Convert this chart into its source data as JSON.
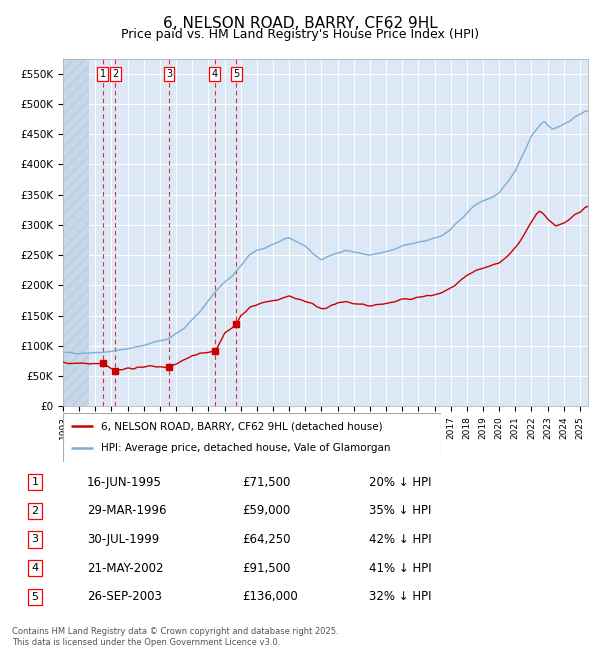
{
  "title": "6, NELSON ROAD, BARRY, CF62 9HL",
  "subtitle": "Price paid vs. HM Land Registry's House Price Index (HPI)",
  "title_fontsize": 11,
  "subtitle_fontsize": 9,
  "ylabel_ticks": [
    "£0",
    "£50K",
    "£100K",
    "£150K",
    "£200K",
    "£250K",
    "£300K",
    "£350K",
    "£400K",
    "£450K",
    "£500K",
    "£550K"
  ],
  "ytick_values": [
    0,
    50000,
    100000,
    150000,
    200000,
    250000,
    300000,
    350000,
    400000,
    450000,
    500000,
    550000
  ],
  "ylim": [
    0,
    575000
  ],
  "xlim_start": 1993.0,
  "xlim_end": 2025.5,
  "hpi_color": "#7bafd4",
  "price_color": "#cc0000",
  "bg_color": "#dce8f5",
  "grid_color": "#ffffff",
  "transactions": [
    {
      "id": 1,
      "year": 1995.45,
      "price": 71500
    },
    {
      "id": 2,
      "year": 1996.24,
      "price": 59000
    },
    {
      "id": 3,
      "year": 1999.58,
      "price": 64250
    },
    {
      "id": 4,
      "year": 2002.39,
      "price": 91500
    },
    {
      "id": 5,
      "year": 2003.74,
      "price": 136000
    }
  ],
  "legend_entries": [
    "6, NELSON ROAD, BARRY, CF62 9HL (detached house)",
    "HPI: Average price, detached house, Vale of Glamorgan"
  ],
  "footer_text": "Contains HM Land Registry data © Crown copyright and database right 2025.\nThis data is licensed under the Open Government Licence v3.0.",
  "table_rows": [
    [
      1,
      "16-JUN-1995",
      "£71,500",
      "20% ↓ HPI"
    ],
    [
      2,
      "29-MAR-1996",
      "£59,000",
      "35% ↓ HPI"
    ],
    [
      3,
      "30-JUL-1999",
      "£64,250",
      "42% ↓ HPI"
    ],
    [
      4,
      "21-MAY-2002",
      "£91,500",
      "41% ↓ HPI"
    ],
    [
      5,
      "26-SEP-2003",
      "£136,000",
      "32% ↓ HPI"
    ]
  ],
  "hpi_anchors": [
    [
      1993.0,
      88000
    ],
    [
      1994.0,
      88500
    ],
    [
      1995.0,
      89000
    ],
    [
      1995.5,
      90000
    ],
    [
      1996.5,
      93000
    ],
    [
      1997.5,
      97000
    ],
    [
      1998.5,
      105000
    ],
    [
      1999.5,
      112000
    ],
    [
      2000.5,
      128000
    ],
    [
      2001.5,
      158000
    ],
    [
      2002.5,
      192000
    ],
    [
      2003.0,
      205000
    ],
    [
      2003.5,
      215000
    ],
    [
      2004.0,
      232000
    ],
    [
      2004.5,
      248000
    ],
    [
      2005.0,
      258000
    ],
    [
      2005.5,
      262000
    ],
    [
      2006.0,
      268000
    ],
    [
      2006.5,
      272000
    ],
    [
      2007.0,
      278000
    ],
    [
      2007.5,
      272000
    ],
    [
      2008.0,
      265000
    ],
    [
      2008.5,
      252000
    ],
    [
      2009.0,
      242000
    ],
    [
      2009.5,
      248000
    ],
    [
      2010.0,
      255000
    ],
    [
      2010.5,
      258000
    ],
    [
      2011.0,
      255000
    ],
    [
      2011.5,
      252000
    ],
    [
      2012.0,
      250000
    ],
    [
      2012.5,
      252000
    ],
    [
      2013.0,
      255000
    ],
    [
      2013.5,
      258000
    ],
    [
      2014.0,
      265000
    ],
    [
      2014.5,
      268000
    ],
    [
      2015.0,
      272000
    ],
    [
      2015.5,
      275000
    ],
    [
      2016.0,
      278000
    ],
    [
      2016.5,
      282000
    ],
    [
      2017.0,
      292000
    ],
    [
      2017.5,
      305000
    ],
    [
      2018.0,
      320000
    ],
    [
      2018.5,
      332000
    ],
    [
      2019.0,
      340000
    ],
    [
      2019.5,
      345000
    ],
    [
      2020.0,
      352000
    ],
    [
      2020.5,
      368000
    ],
    [
      2021.0,
      390000
    ],
    [
      2021.5,
      418000
    ],
    [
      2022.0,
      448000
    ],
    [
      2022.3,
      458000
    ],
    [
      2022.6,
      468000
    ],
    [
      2022.8,
      472000
    ],
    [
      2023.0,
      465000
    ],
    [
      2023.3,
      458000
    ],
    [
      2023.6,
      462000
    ],
    [
      2024.0,
      465000
    ],
    [
      2024.3,
      470000
    ],
    [
      2024.6,
      478000
    ],
    [
      2025.0,
      482000
    ],
    [
      2025.3,
      488000
    ],
    [
      2025.5,
      490000
    ]
  ],
  "price_anchors": [
    [
      1993.0,
      71500
    ],
    [
      1994.5,
      71500
    ],
    [
      1995.45,
      71500
    ],
    [
      1996.24,
      59000
    ],
    [
      1996.5,
      60000
    ],
    [
      1997.0,
      62000
    ],
    [
      1997.5,
      64000
    ],
    [
      1998.0,
      65000
    ],
    [
      1998.5,
      66000
    ],
    [
      1999.0,
      65000
    ],
    [
      1999.58,
      64250
    ],
    [
      2000.0,
      70000
    ],
    [
      2000.5,
      76000
    ],
    [
      2001.0,
      82000
    ],
    [
      2001.5,
      88000
    ],
    [
      2002.0,
      90000
    ],
    [
      2002.39,
      91500
    ],
    [
      2002.8,
      108000
    ],
    [
      2003.0,
      120000
    ],
    [
      2003.74,
      136000
    ],
    [
      2004.0,
      150000
    ],
    [
      2004.5,
      162000
    ],
    [
      2005.0,
      168000
    ],
    [
      2005.5,
      172000
    ],
    [
      2006.0,
      175000
    ],
    [
      2006.5,
      178000
    ],
    [
      2007.0,
      182000
    ],
    [
      2007.5,
      178000
    ],
    [
      2008.0,
      174000
    ],
    [
      2008.5,
      168000
    ],
    [
      2009.0,
      162000
    ],
    [
      2009.5,
      165000
    ],
    [
      2010.0,
      170000
    ],
    [
      2010.5,
      172000
    ],
    [
      2011.0,
      170000
    ],
    [
      2011.5,
      168000
    ],
    [
      2012.0,
      166000
    ],
    [
      2012.5,
      168000
    ],
    [
      2013.0,
      170000
    ],
    [
      2013.5,
      172000
    ],
    [
      2014.0,
      176000
    ],
    [
      2014.5,
      178000
    ],
    [
      2015.0,
      180000
    ],
    [
      2015.5,
      182000
    ],
    [
      2016.0,
      184000
    ],
    [
      2016.5,
      188000
    ],
    [
      2017.0,
      195000
    ],
    [
      2017.5,
      205000
    ],
    [
      2018.0,
      215000
    ],
    [
      2018.5,
      222000
    ],
    [
      2019.0,
      228000
    ],
    [
      2019.5,
      232000
    ],
    [
      2020.0,
      236000
    ],
    [
      2020.5,
      248000
    ],
    [
      2021.0,
      262000
    ],
    [
      2021.5,
      282000
    ],
    [
      2022.0,
      305000
    ],
    [
      2022.3,
      318000
    ],
    [
      2022.5,
      322000
    ],
    [
      2022.7,
      318000
    ],
    [
      2022.9,
      312000
    ],
    [
      2023.0,
      308000
    ],
    [
      2023.3,
      302000
    ],
    [
      2023.5,
      298000
    ],
    [
      2023.8,
      302000
    ],
    [
      2024.0,
      305000
    ],
    [
      2024.3,
      308000
    ],
    [
      2024.6,
      315000
    ],
    [
      2025.0,
      322000
    ],
    [
      2025.3,
      328000
    ],
    [
      2025.5,
      330000
    ]
  ]
}
